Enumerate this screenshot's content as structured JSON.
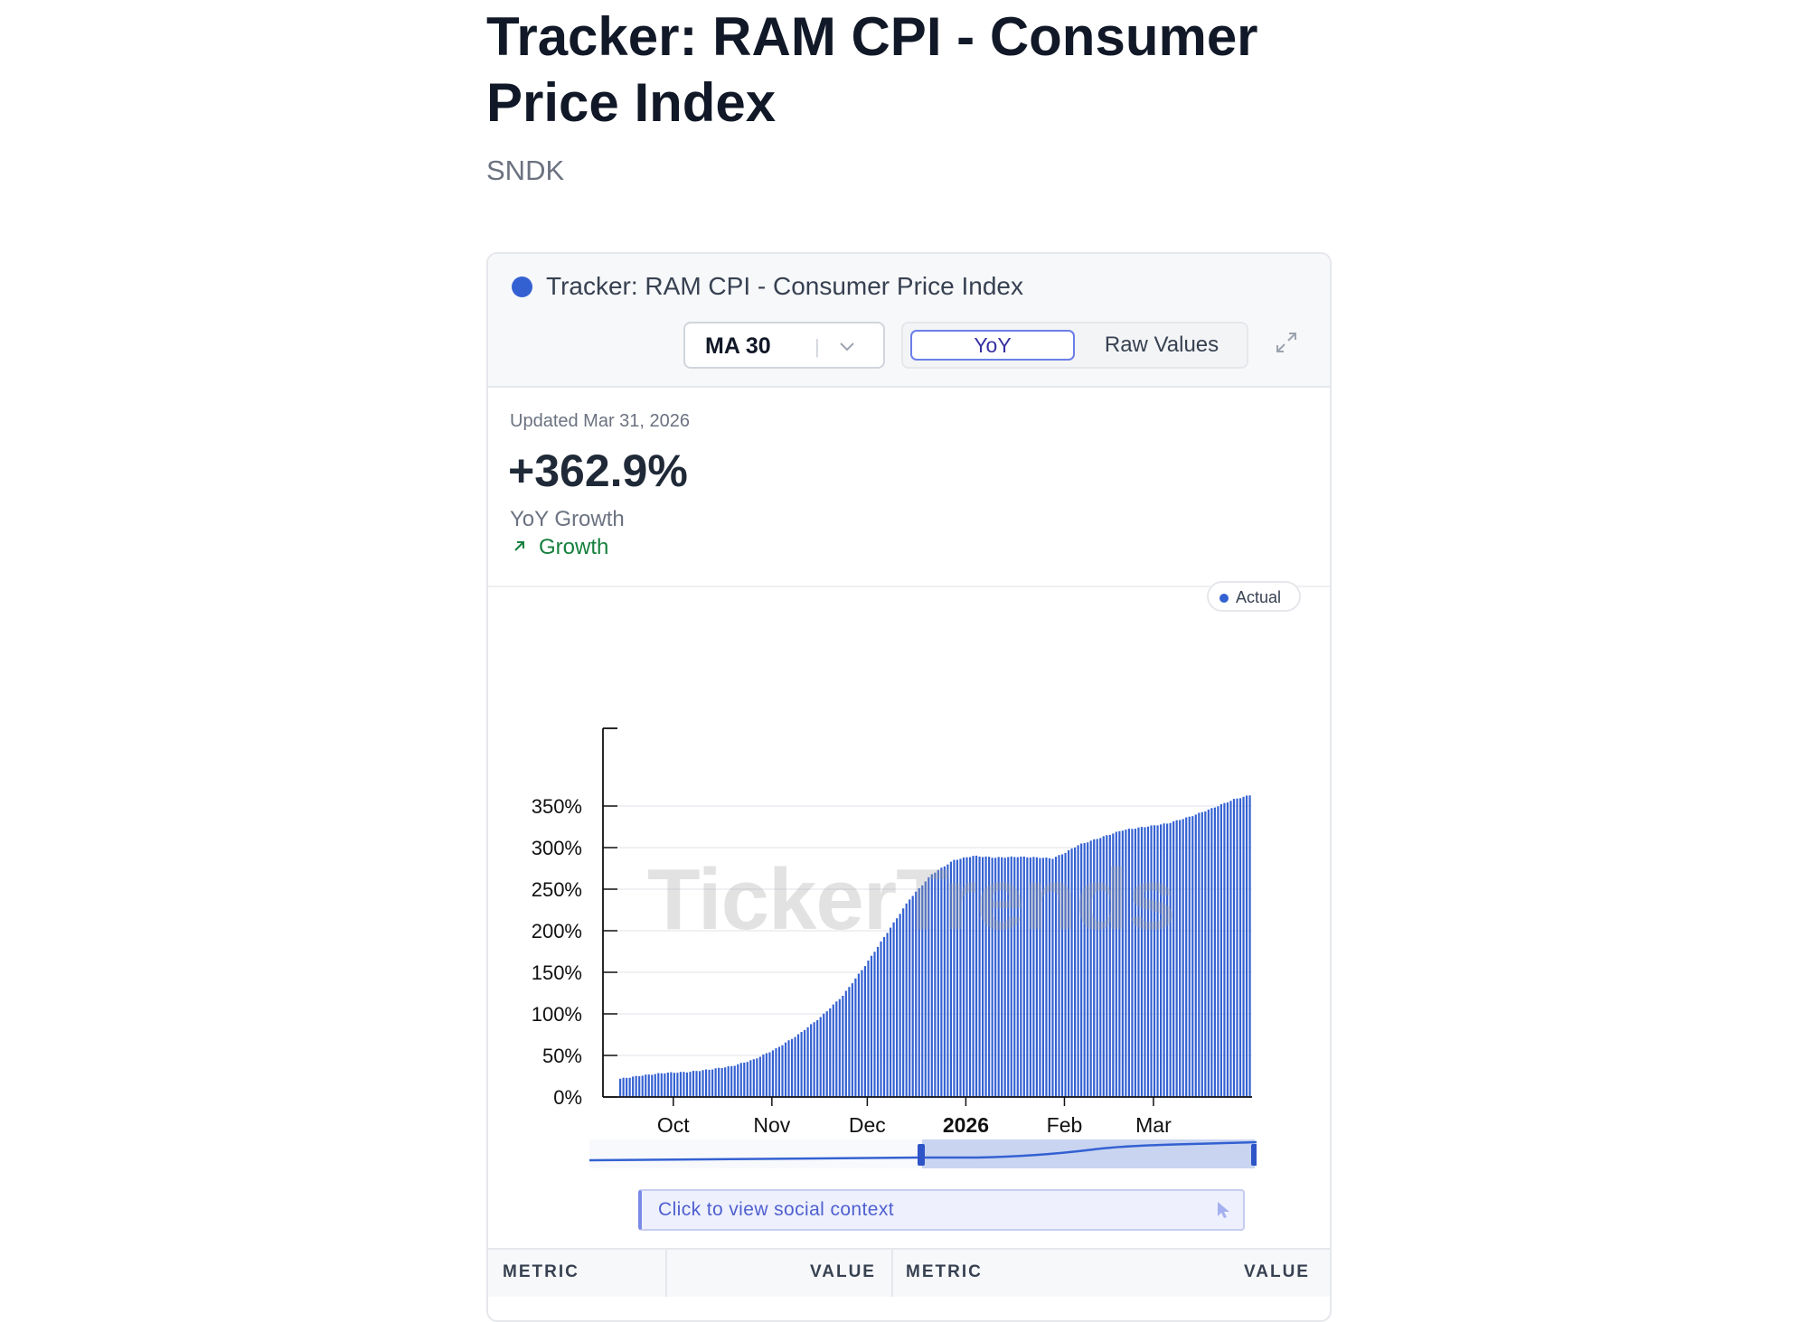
{
  "page": {
    "title": "Tracker: RAM CPI - Consumer Price Index",
    "ticker": "SNDK"
  },
  "card": {
    "title": "Tracker: RAM CPI - Consumer Price Index",
    "series_color": "#3461d2",
    "ma_select": {
      "value": "MA 30"
    },
    "toggle": {
      "yoy": "YoY",
      "raw": "Raw Values",
      "active": "YoY"
    }
  },
  "stats": {
    "updated": "Updated Mar 31, 2026",
    "value": "+362.9%",
    "label": "YoY Growth",
    "trend": "Growth",
    "trend_color": "#15803d"
  },
  "legend": {
    "label": "Actual"
  },
  "watermark": "TickerTrends",
  "social": {
    "label": "Click to view social context"
  },
  "table": {
    "headers": [
      "METRIC",
      "VALUE",
      "METRIC",
      "VALUE"
    ]
  },
  "chart_data": {
    "type": "bar",
    "y_ticks": [
      "0%",
      "50%",
      "100%",
      "150%",
      "200%",
      "250%",
      "300%",
      "350%"
    ],
    "ylim": [
      0,
      400
    ],
    "x_ticks": [
      {
        "label": "Oct",
        "day": 17,
        "bold": false
      },
      {
        "label": "Nov",
        "day": 48,
        "bold": false
      },
      {
        "label": "Dec",
        "day": 78,
        "bold": false
      },
      {
        "label": "2026",
        "day": 109,
        "bold": true
      },
      {
        "label": "Feb",
        "day": 140,
        "bold": false
      },
      {
        "label": "Mar",
        "day": 168,
        "bold": false
      }
    ],
    "x_start": "2025-09-14",
    "x_end": "2026-03-31",
    "grid": true,
    "legend_position": "top-right",
    "keypoints": [
      [
        "2025-09-14",
        22
      ],
      [
        "2025-09-21",
        26
      ],
      [
        "2025-09-28",
        29
      ],
      [
        "2025-10-05",
        30
      ],
      [
        "2025-10-12",
        33
      ],
      [
        "2025-10-19",
        37
      ],
      [
        "2025-10-26",
        45
      ],
      [
        "2025-11-02",
        58
      ],
      [
        "2025-11-09",
        75
      ],
      [
        "2025-11-16",
        96
      ],
      [
        "2025-11-23",
        122
      ],
      [
        "2025-11-30",
        158
      ],
      [
        "2025-12-07",
        198
      ],
      [
        "2025-12-14",
        238
      ],
      [
        "2025-12-21",
        268
      ],
      [
        "2025-12-28",
        285
      ],
      [
        "2026-01-03",
        290
      ],
      [
        "2026-01-10",
        288
      ],
      [
        "2026-01-17",
        289
      ],
      [
        "2026-01-24",
        288
      ],
      [
        "2026-01-28",
        287
      ],
      [
        "2026-02-01",
        294
      ],
      [
        "2026-02-05",
        303
      ],
      [
        "2026-02-12",
        312
      ],
      [
        "2026-02-19",
        321
      ],
      [
        "2026-02-26",
        325
      ],
      [
        "2026-03-05",
        329
      ],
      [
        "2026-03-12",
        337
      ],
      [
        "2026-03-19",
        347
      ],
      [
        "2026-03-26",
        358
      ],
      [
        "2026-03-31",
        363
      ]
    ],
    "navigator_range": [
      "2025-07-01",
      "2026-03-31"
    ]
  }
}
